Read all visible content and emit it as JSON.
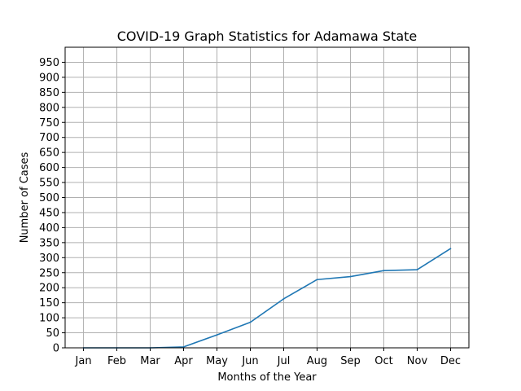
{
  "chart_data": {
    "type": "line",
    "title": "COVID-19 Graph Statistics for Adamawa State",
    "xlabel": "Months of the Year",
    "ylabel": "Number of Cases",
    "categories": [
      "Jan",
      "Feb",
      "Mar",
      "Apr",
      "May",
      "Jun",
      "Jul",
      "Aug",
      "Sep",
      "Oct",
      "Nov",
      "Dec"
    ],
    "series": [
      {
        "values": [
          0,
          0,
          0,
          3,
          43,
          85,
          163,
          227,
          237,
          257,
          260,
          330
        ],
        "color": "#1f77b4"
      }
    ],
    "ylim": [
      0,
      1000
    ],
    "yticks": [
      0,
      50,
      100,
      150,
      200,
      250,
      300,
      350,
      400,
      450,
      500,
      550,
      600,
      650,
      700,
      750,
      800,
      850,
      900,
      950
    ],
    "grid": true,
    "grid_color": "#b0b0b0"
  }
}
